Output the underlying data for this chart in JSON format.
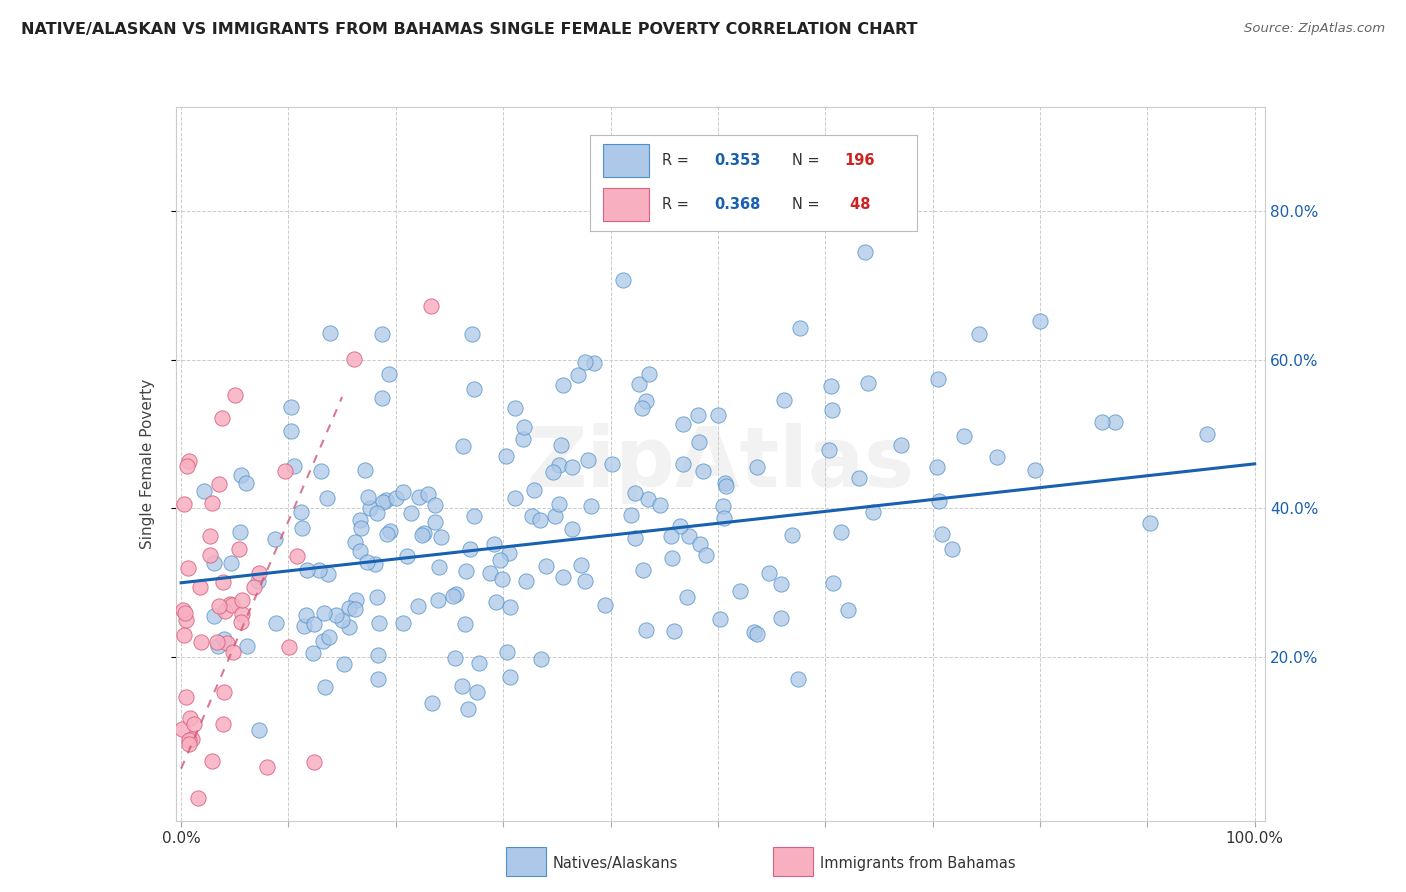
{
  "title": "NATIVE/ALASKAN VS IMMIGRANTS FROM BAHAMAS SINGLE FEMALE POVERTY CORRELATION CHART",
  "source": "Source: ZipAtlas.com",
  "ylabel": "Single Female Poverty",
  "y_ticks": [
    0.2,
    0.4,
    0.6,
    0.8
  ],
  "y_tick_labels": [
    "20.0%",
    "40.0%",
    "60.0%",
    "80.0%"
  ],
  "blue_R": 0.353,
  "blue_N": 196,
  "pink_R": 0.368,
  "pink_N": 48,
  "blue_color": "#adc8e8",
  "blue_edge": "#5090c8",
  "pink_color": "#f8b0c0",
  "pink_edge": "#d86080",
  "trendline_blue": "#1860b0",
  "trendline_pink": "#d05878",
  "watermark": "ZipAtlas",
  "legend_label_blue": "Natives/Alaskans",
  "legend_label_pink": "Immigrants from Bahamas",
  "blue_seed": 42,
  "pink_seed": 99,
  "legend_R_color": "#1860b0",
  "legend_N_color": "#cc2222"
}
